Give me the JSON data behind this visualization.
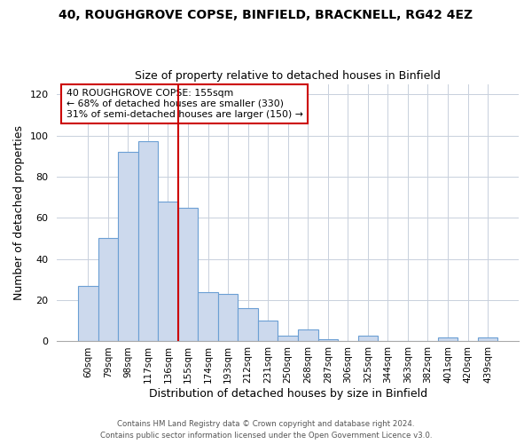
{
  "title": "40, ROUGHGROVE COPSE, BINFIELD, BRACKNELL, RG42 4EZ",
  "subtitle": "Size of property relative to detached houses in Binfield",
  "xlabel": "Distribution of detached houses by size in Binfield",
  "ylabel": "Number of detached properties",
  "bar_color": "#ccd9ed",
  "bar_edge_color": "#6b9fd4",
  "bins": [
    "60sqm",
    "79sqm",
    "98sqm",
    "117sqm",
    "136sqm",
    "155sqm",
    "174sqm",
    "193sqm",
    "212sqm",
    "231sqm",
    "250sqm",
    "268sqm",
    "287sqm",
    "306sqm",
    "325sqm",
    "344sqm",
    "363sqm",
    "382sqm",
    "401sqm",
    "420sqm",
    "439sqm"
  ],
  "values": [
    27,
    50,
    92,
    97,
    68,
    65,
    24,
    23,
    16,
    10,
    3,
    6,
    1,
    0,
    3,
    0,
    0,
    0,
    2,
    0,
    2
  ],
  "vline_color": "#cc0000",
  "vline_index": 5,
  "annotation_line1": "40 ROUGHGROVE COPSE: 155sqm",
  "annotation_line2": "← 68% of detached houses are smaller (330)",
  "annotation_line3": "31% of semi-detached houses are larger (150) →",
  "ylim": [
    0,
    125
  ],
  "yticks": [
    0,
    20,
    40,
    60,
    80,
    100,
    120
  ],
  "footer1": "Contains HM Land Registry data © Crown copyright and database right 2024.",
  "footer2": "Contains public sector information licensed under the Open Government Licence v3.0.",
  "background_color": "#ffffff",
  "grid_color": "#c8d0dc"
}
